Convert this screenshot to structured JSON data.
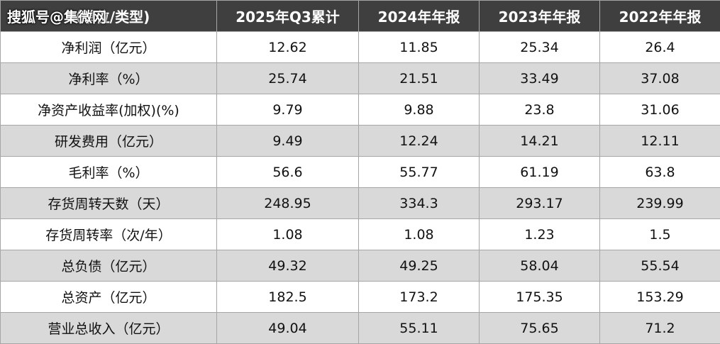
{
  "watermark": "搜狐号@集微网",
  "table": {
    "header": [
      "（单位/类型)",
      "2025年Q3累计",
      "2024年年报",
      "2023年年报",
      "2022年年报"
    ],
    "rows": [
      [
        "净利润（亿元）",
        "12.62",
        "11.85",
        "25.34",
        "26.4"
      ],
      [
        "净利率（%）",
        "25.74",
        "21.51",
        "33.49",
        "37.08"
      ],
      [
        "净资产收益率(加权)(%)",
        "9.79",
        "9.88",
        "23.8",
        "31.06"
      ],
      [
        "研发费用（亿元）",
        "9.49",
        "12.24",
        "14.21",
        "12.11"
      ],
      [
        "毛利率（%）",
        "56.6",
        "55.77",
        "61.19",
        "63.8"
      ],
      [
        "存货周转天数（天）",
        "248.95",
        "334.3",
        "293.17",
        "239.99"
      ],
      [
        "存货周转率（次/年）",
        "1.08",
        "1.08",
        "1.23",
        "1.5"
      ],
      [
        "总负债（亿元）",
        "49.32",
        "49.25",
        "58.04",
        "55.54"
      ],
      [
        "总资产（亿元）",
        "182.5",
        "173.2",
        "175.35",
        "153.29"
      ],
      [
        "营业总收入（亿元）",
        "49.04",
        "55.11",
        "75.65",
        "71.2"
      ]
    ]
  }
}
